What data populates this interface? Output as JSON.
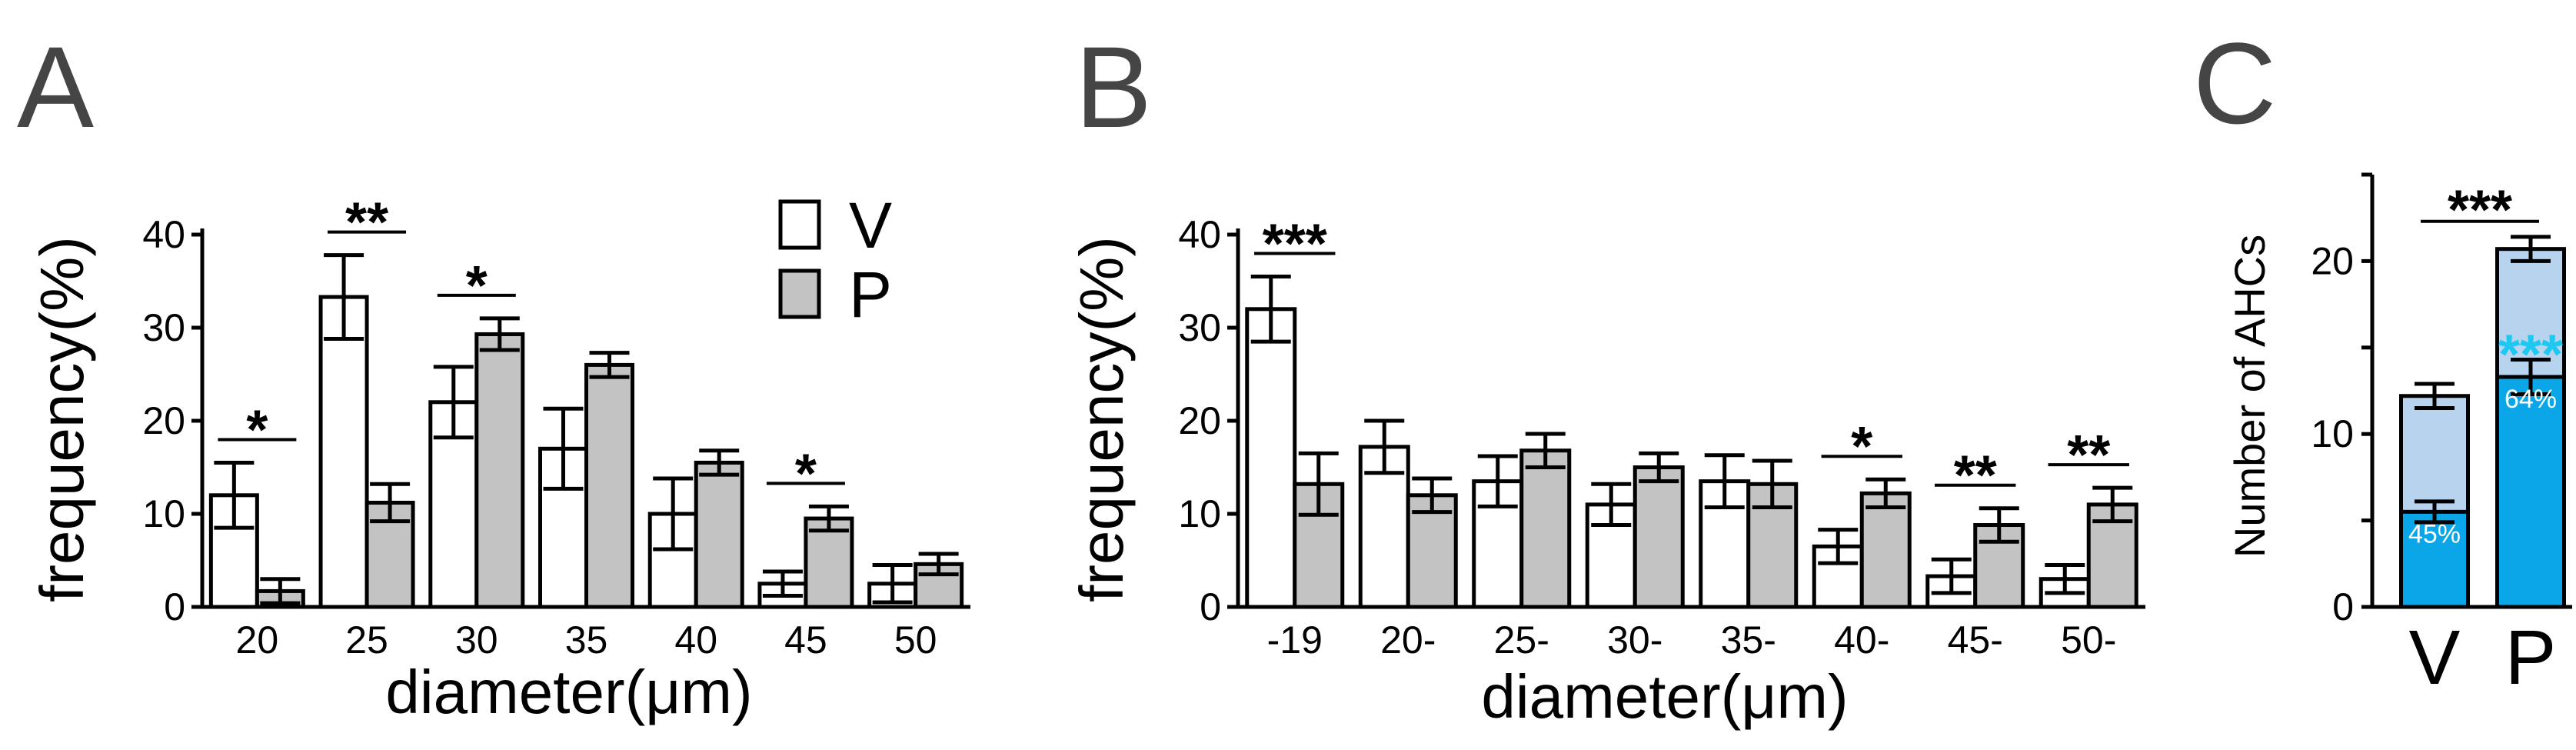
{
  "colors": {
    "V": "#ffffff",
    "P": "#c3c3c3",
    "stroke": "#000000",
    "C_total": "#b7d3ee",
    "C_inner": "#0aa6e8",
    "C_star": "#1ec8f0"
  },
  "legend": {
    "V": "V",
    "P": "P"
  },
  "chart_data": [
    {
      "panel": "A",
      "type": "bar",
      "xlabel": "diameter(μm)",
      "ylabel": "frequency(%)",
      "ylim": [
        0,
        40
      ],
      "yticks": [
        "0",
        "10",
        "20",
        "30",
        "40"
      ],
      "categories": [
        "20",
        "25",
        "30",
        "35",
        "40",
        "45",
        "50"
      ],
      "series": [
        {
          "name": "V",
          "values": [
            12,
            33.3,
            22,
            17,
            10,
            2.5,
            2.5
          ],
          "err": [
            3.5,
            4.5,
            3.8,
            4.3,
            3.8,
            1.3,
            2.0
          ]
        },
        {
          "name": "P",
          "values": [
            1.7,
            11.2,
            29.3,
            26,
            15.5,
            9.5,
            4.6
          ],
          "err": [
            1.3,
            2.0,
            1.7,
            1.3,
            1.3,
            1.3,
            1.1
          ]
        }
      ],
      "significance": [
        {
          "index": 0,
          "label": "*"
        },
        {
          "index": 1,
          "label": "**"
        },
        {
          "index": 2,
          "label": "*"
        },
        {
          "index": 5,
          "label": "*"
        }
      ]
    },
    {
      "panel": "B",
      "type": "bar",
      "xlabel": "diameter(μm)",
      "ylabel": "frequency(%)",
      "ylim": [
        0,
        40
      ],
      "yticks": [
        "0",
        "10",
        "20",
        "30",
        "40"
      ],
      "categories": [
        "-19",
        "20-",
        "25-",
        "30-",
        "35-",
        "40-",
        "45-",
        "50-"
      ],
      "series": [
        {
          "name": "V",
          "values": [
            32,
            17.2,
            13.5,
            11,
            13.5,
            6.5,
            3.3,
            3.0
          ],
          "err": [
            3.5,
            2.8,
            2.7,
            2.2,
            2.8,
            1.8,
            1.8,
            1.5
          ]
        },
        {
          "name": "P",
          "values": [
            13.2,
            12,
            16.8,
            15,
            13.2,
            12.2,
            8.8,
            11
          ],
          "err": [
            3.3,
            1.8,
            1.8,
            1.5,
            2.5,
            1.5,
            1.8,
            1.8
          ]
        }
      ],
      "significance": [
        {
          "index": 0,
          "label": "***"
        },
        {
          "index": 5,
          "label": "*"
        },
        {
          "index": 6,
          "label": "**"
        },
        {
          "index": 7,
          "label": "**"
        }
      ]
    },
    {
      "panel": "C",
      "type": "bar",
      "ylabel": "Number of AHCs",
      "ylim": [
        0,
        25
      ],
      "yticks": [
        "0",
        "10",
        "20"
      ],
      "categories": [
        "V",
        "P"
      ],
      "total": {
        "values": [
          12.2,
          20.7
        ],
        "err": [
          0.7,
          0.7
        ]
      },
      "subset": {
        "values": [
          5.5,
          13.3
        ],
        "err": [
          0.6,
          1.0
        ],
        "percent_labels": [
          "45%",
          "64%"
        ]
      },
      "significance": [
        {
          "between": [
            0,
            1
          ],
          "label": "***"
        },
        {
          "index": 1,
          "label": "***",
          "subset": true
        }
      ]
    }
  ]
}
